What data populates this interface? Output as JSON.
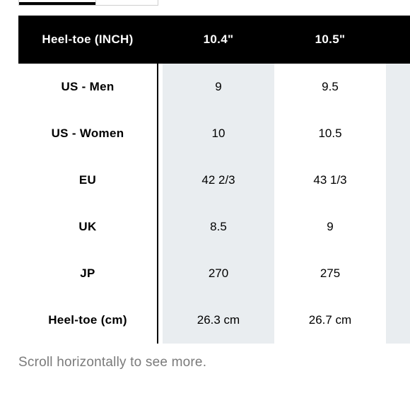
{
  "table": {
    "header": {
      "label": "Heel-toe (INCH)",
      "columns": [
        "10.4\"",
        "10.5\""
      ]
    },
    "rows": [
      {
        "label": "US - Men",
        "values": [
          "9",
          "9.5"
        ]
      },
      {
        "label": "US - Women",
        "values": [
          "10",
          "10.5"
        ]
      },
      {
        "label": "EU",
        "values": [
          "42 2/3",
          "43 1/3"
        ]
      },
      {
        "label": "UK",
        "values": [
          "8.5",
          "9"
        ]
      },
      {
        "label": "JP",
        "values": [
          "270",
          "275"
        ]
      },
      {
        "label": "Heel-toe (cm)",
        "values": [
          "26.3 cm",
          "26.7 cm"
        ]
      }
    ]
  },
  "footnote": "Scroll horizontally to see more.",
  "colors": {
    "header_bg": "#000000",
    "header_text": "#ffffff",
    "column_shade": "#e9edf0",
    "footnote_text": "#7a7a7a"
  }
}
